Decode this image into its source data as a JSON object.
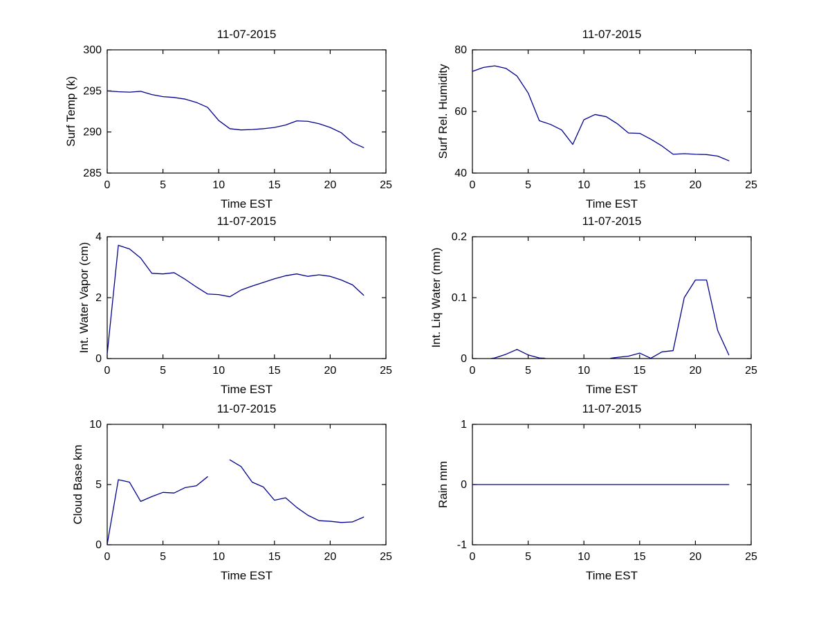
{
  "figure": {
    "background": "#ffffff",
    "axis_color": "#000000",
    "text_color": "#000000",
    "line_color": "#00008b"
  },
  "chart_data": [
    {
      "id": "surf-temp",
      "type": "line",
      "title": "11-07-2015",
      "xlabel": "Time EST",
      "ylabel": "Surf Temp (k)",
      "xlim": [
        0,
        25
      ],
      "ylim": [
        285,
        300
      ],
      "xticks": [
        0,
        5,
        10,
        15,
        20,
        25
      ],
      "yticks": [
        285,
        290,
        295,
        300
      ],
      "grid": false,
      "legend": null,
      "segments": [
        {
          "x": [
            0,
            1,
            2,
            3,
            4,
            5,
            6,
            7,
            8,
            9,
            10,
            11,
            12,
            13,
            14,
            15,
            16,
            17,
            18,
            19,
            20,
            21,
            22,
            23
          ],
          "y": [
            295.0,
            294.9,
            294.85,
            294.95,
            294.55,
            294.3,
            294.2,
            294.0,
            293.6,
            293.0,
            291.4,
            290.4,
            290.25,
            290.3,
            290.4,
            290.55,
            290.85,
            291.35,
            291.3,
            291.0,
            290.55,
            289.9,
            288.7,
            288.1
          ]
        }
      ]
    },
    {
      "id": "surf-rel-humidity",
      "type": "line",
      "title": "11-07-2015",
      "xlabel": "Time EST",
      "ylabel": "Surf Rel. Humidity",
      "xlim": [
        0,
        25
      ],
      "ylim": [
        40,
        80
      ],
      "xticks": [
        0,
        5,
        10,
        15,
        20,
        25
      ],
      "yticks": [
        40,
        60,
        80
      ],
      "grid": false,
      "legend": null,
      "segments": [
        {
          "x": [
            0,
            1,
            2,
            3,
            4,
            5,
            6,
            7,
            8,
            9,
            10,
            11,
            12,
            13,
            14,
            15,
            16,
            17,
            18,
            19,
            20,
            21,
            22,
            23
          ],
          "y": [
            73,
            74.3,
            74.8,
            74,
            71.5,
            66,
            57,
            55.8,
            54,
            49.3,
            57.3,
            59,
            58.3,
            56,
            53,
            52.9,
            51,
            48.8,
            46.1,
            46.3,
            46.1,
            46,
            45.5,
            44
          ]
        }
      ]
    },
    {
      "id": "int-water-vapor",
      "type": "line",
      "title": "11-07-2015",
      "xlabel": "Time EST",
      "ylabel": "Int. Water Vapor (cm)",
      "xlim": [
        0,
        25
      ],
      "ylim": [
        0,
        4
      ],
      "xticks": [
        0,
        5,
        10,
        15,
        20,
        25
      ],
      "yticks": [
        0,
        2,
        4
      ],
      "grid": false,
      "legend": null,
      "segments": [
        {
          "x": [
            0,
            1,
            2,
            3,
            4,
            5,
            6,
            7,
            8,
            9,
            10,
            11,
            12,
            13,
            14,
            15,
            16,
            17,
            18,
            19,
            20,
            21,
            22,
            23
          ],
          "y": [
            0.15,
            3.72,
            3.6,
            3.3,
            2.8,
            2.78,
            2.82,
            2.6,
            2.35,
            2.12,
            2.1,
            2.03,
            2.25,
            2.38,
            2.5,
            2.62,
            2.72,
            2.78,
            2.7,
            2.75,
            2.7,
            2.58,
            2.42,
            2.08
          ]
        }
      ]
    },
    {
      "id": "int-liq-water",
      "type": "line",
      "title": "11-07-2015",
      "xlabel": "Time EST",
      "ylabel": "Int. Liq Water (mm)",
      "xlim": [
        0,
        25
      ],
      "ylim": [
        0,
        0.2
      ],
      "xticks": [
        0,
        5,
        10,
        15,
        20,
        25
      ],
      "yticks": [
        0,
        0.1,
        0.2
      ],
      "grid": false,
      "legend": null,
      "segments": [
        {
          "x": [
            1.7,
            2,
            3,
            4,
            5,
            6,
            6.5
          ],
          "y": [
            0.0003,
            0.001,
            0.007,
            0.015,
            0.006,
            0.001,
            0.0005
          ]
        },
        {
          "x": [
            12.4,
            13,
            14,
            15,
            16,
            17,
            18,
            19,
            20,
            21,
            22,
            23
          ],
          "y": [
            0.0005,
            0.002,
            0.004,
            0.009,
            0.0005,
            0.011,
            0.013,
            0.1,
            0.129,
            0.129,
            0.046,
            0.006
          ]
        }
      ]
    },
    {
      "id": "cloud-base",
      "type": "line",
      "title": "11-07-2015",
      "xlabel": "Time EST",
      "ylabel": "Cloud Base km",
      "xlim": [
        0,
        25
      ],
      "ylim": [
        0,
        10
      ],
      "xticks": [
        0,
        5,
        10,
        15,
        20,
        25
      ],
      "yticks": [
        0,
        5,
        10
      ],
      "grid": false,
      "legend": null,
      "segments": [
        {
          "x": [
            0,
            1,
            2,
            3,
            4,
            5,
            6,
            7,
            8,
            9
          ],
          "y": [
            0.05,
            5.4,
            5.2,
            3.6,
            4.0,
            4.35,
            4.3,
            4.75,
            4.9,
            5.65
          ]
        },
        {
          "x": [
            11,
            12,
            13,
            14,
            15,
            16,
            17,
            18,
            19,
            20,
            21,
            22,
            23
          ],
          "y": [
            7.05,
            6.5,
            5.2,
            4.8,
            3.7,
            3.9,
            3.1,
            2.45,
            2.0,
            1.95,
            1.85,
            1.9,
            2.3
          ]
        }
      ]
    },
    {
      "id": "rain",
      "type": "line",
      "title": "11-07-2015",
      "xlabel": "Time EST",
      "ylabel": "Rain mm",
      "xlim": [
        0,
        25
      ],
      "ylim": [
        -1,
        1
      ],
      "xticks": [
        0,
        5,
        10,
        15,
        20,
        25
      ],
      "yticks": [
        -1,
        0,
        1
      ],
      "grid": false,
      "legend": null,
      "segments": [
        {
          "x": [
            0,
            1,
            2,
            3,
            4,
            5,
            6,
            7,
            8,
            9,
            10,
            11,
            12,
            13,
            14,
            15,
            16,
            17,
            18,
            19,
            20,
            21,
            22,
            23
          ],
          "y": [
            0,
            0,
            0,
            0,
            0,
            0,
            0,
            0,
            0,
            0,
            0,
            0,
            0,
            0,
            0,
            0,
            0,
            0,
            0,
            0,
            0,
            0,
            0,
            0
          ]
        }
      ]
    }
  ]
}
